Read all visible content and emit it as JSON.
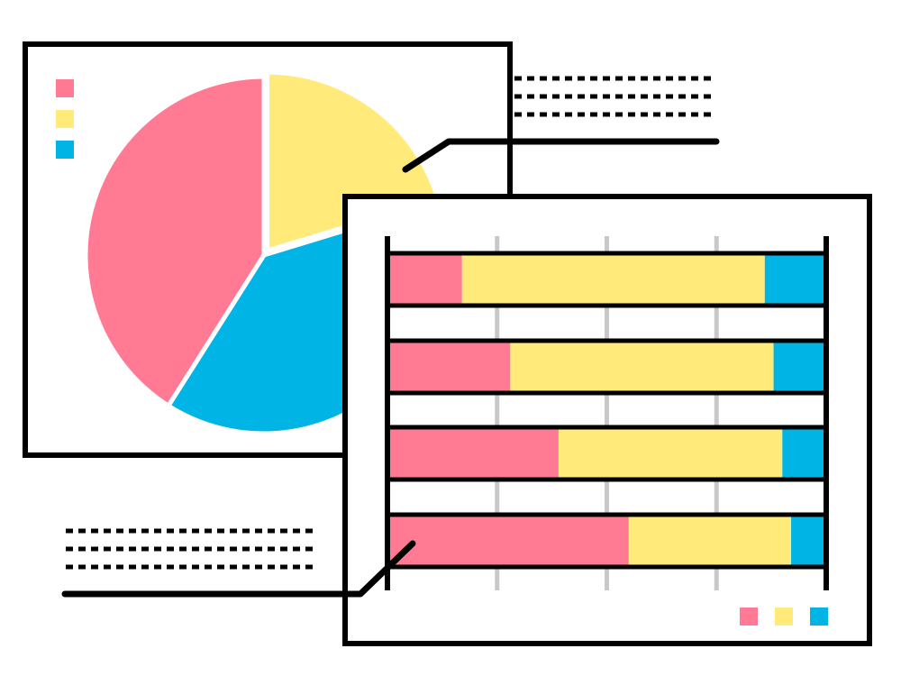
{
  "colors": {
    "pink": "#FF7A92",
    "yellow": "#FFEA7A",
    "blue": "#00B4E6",
    "ink": "#000000",
    "grid": "#C8C8C8",
    "paper": "#FFFFFF"
  },
  "chart_data": [
    {
      "type": "pie",
      "title": "",
      "legend": "top-left",
      "slices": [
        {
          "name": "",
          "color": "yellow",
          "value": 0.203
        },
        {
          "name": "",
          "color": "blue",
          "value": 0.387
        },
        {
          "name": "",
          "color": "pink",
          "value": 0.41
        }
      ],
      "exploded_slice": "yellow"
    },
    {
      "type": "bar",
      "orientation": "horizontal",
      "stacked": true,
      "normalized": true,
      "title": "",
      "xlabel": "",
      "ylabel": "",
      "xlim": [
        0,
        100
      ],
      "grid": true,
      "legend": "bottom-right",
      "categories": [
        "",
        "",
        "",
        ""
      ],
      "series": [
        {
          "color": "pink",
          "values": [
            17,
            28,
            39,
            55
          ]
        },
        {
          "color": "yellow",
          "values": [
            69,
            60,
            51,
            37
          ]
        },
        {
          "color": "blue",
          "values": [
            14,
            12,
            10,
            8
          ]
        }
      ]
    }
  ]
}
